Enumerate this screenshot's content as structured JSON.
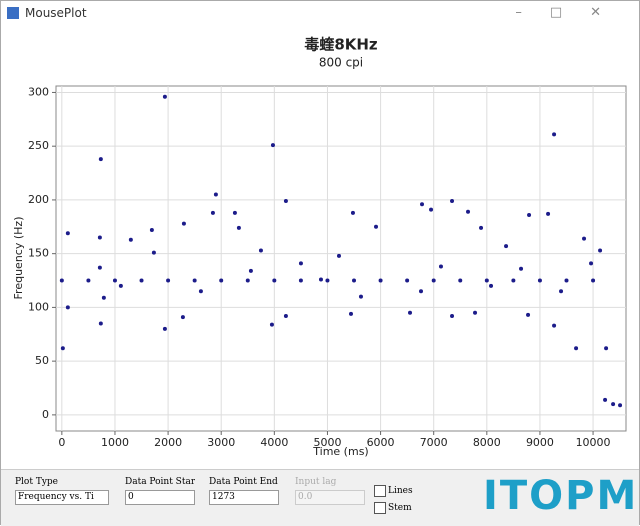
{
  "window": {
    "title": "MousePlot"
  },
  "chart_data": {
    "type": "scatter",
    "title": "毒蝰8KHz",
    "subtitle": "800 cpi",
    "xlabel": "Time (ms)",
    "ylabel": "Frequency (Hz)",
    "x": [
      19,
      113,
      113,
      734,
      716,
      716,
      734,
      791,
      1940,
      1940,
      1695,
      3974,
      3955,
      4218,
      4218,
      2900,
      2844,
      3258,
      9266,
      9153,
      9266,
      9680,
      10245,
      10226,
      10377,
      10508,
      5480,
      6780,
      7345,
      6950,
      7646,
      8795,
      9830,
      10132,
      5443,
      7345,
      6554,
      8776,
      7778,
      2298,
      3333,
      3748,
      2279,
      1299,
      1733,
      5217,
      5914,
      7891,
      8362,
      9962,
      4501,
      4878,
      1111,
      2618,
      5631,
      6761,
      8079,
      9397,
      3559,
      7137,
      8644,
      0,
      500,
      1000,
      1500,
      2000,
      2500,
      3000,
      3500,
      4000,
      4500,
      5000,
      5500,
      6000,
      6500,
      7000,
      7500,
      8000,
      8500,
      9000,
      9500,
      10000
    ],
    "series": [
      {
        "color": "#1c1c8a",
        "values": [
          62,
          169,
          100,
          238,
          165,
          137,
          85,
          109,
          296,
          80,
          172,
          251,
          84,
          199,
          92,
          205,
          188,
          188,
          261,
          187,
          83,
          62,
          62,
          14,
          10,
          9,
          188,
          196,
          199,
          191,
          189,
          186,
          164,
          153,
          94,
          92,
          95,
          93,
          95,
          178,
          174,
          153,
          91,
          163,
          151,
          148,
          175,
          174,
          157,
          141,
          141,
          126,
          120,
          115,
          110,
          115,
          120,
          115,
          134,
          138,
          136,
          125,
          125,
          125,
          125,
          125,
          125,
          125,
          125,
          125,
          125,
          125,
          125,
          125,
          125,
          125,
          125,
          125,
          125,
          125,
          125,
          125
        ]
      }
    ],
    "xlim": [
      -110,
      10620
    ],
    "ylim": [
      -15,
      306
    ],
    "xticks": [
      0,
      1000,
      2000,
      3000,
      4000,
      5000,
      6000,
      7000,
      8000,
      9000,
      10000
    ],
    "yticks": [
      0,
      50,
      100,
      150,
      200,
      250,
      300
    ],
    "grid": true
  },
  "controls": {
    "plot_type_label": "Plot Type",
    "plot_type": "Frequency vs. Ti",
    "start_label": "Data Point Start",
    "start": "0",
    "end_label": "Data Point End",
    "end": "1273",
    "lag_label": "Input lag",
    "lag": "0.0",
    "lines": "Lines",
    "stem": "Stem"
  },
  "watermark": "ITOPM"
}
